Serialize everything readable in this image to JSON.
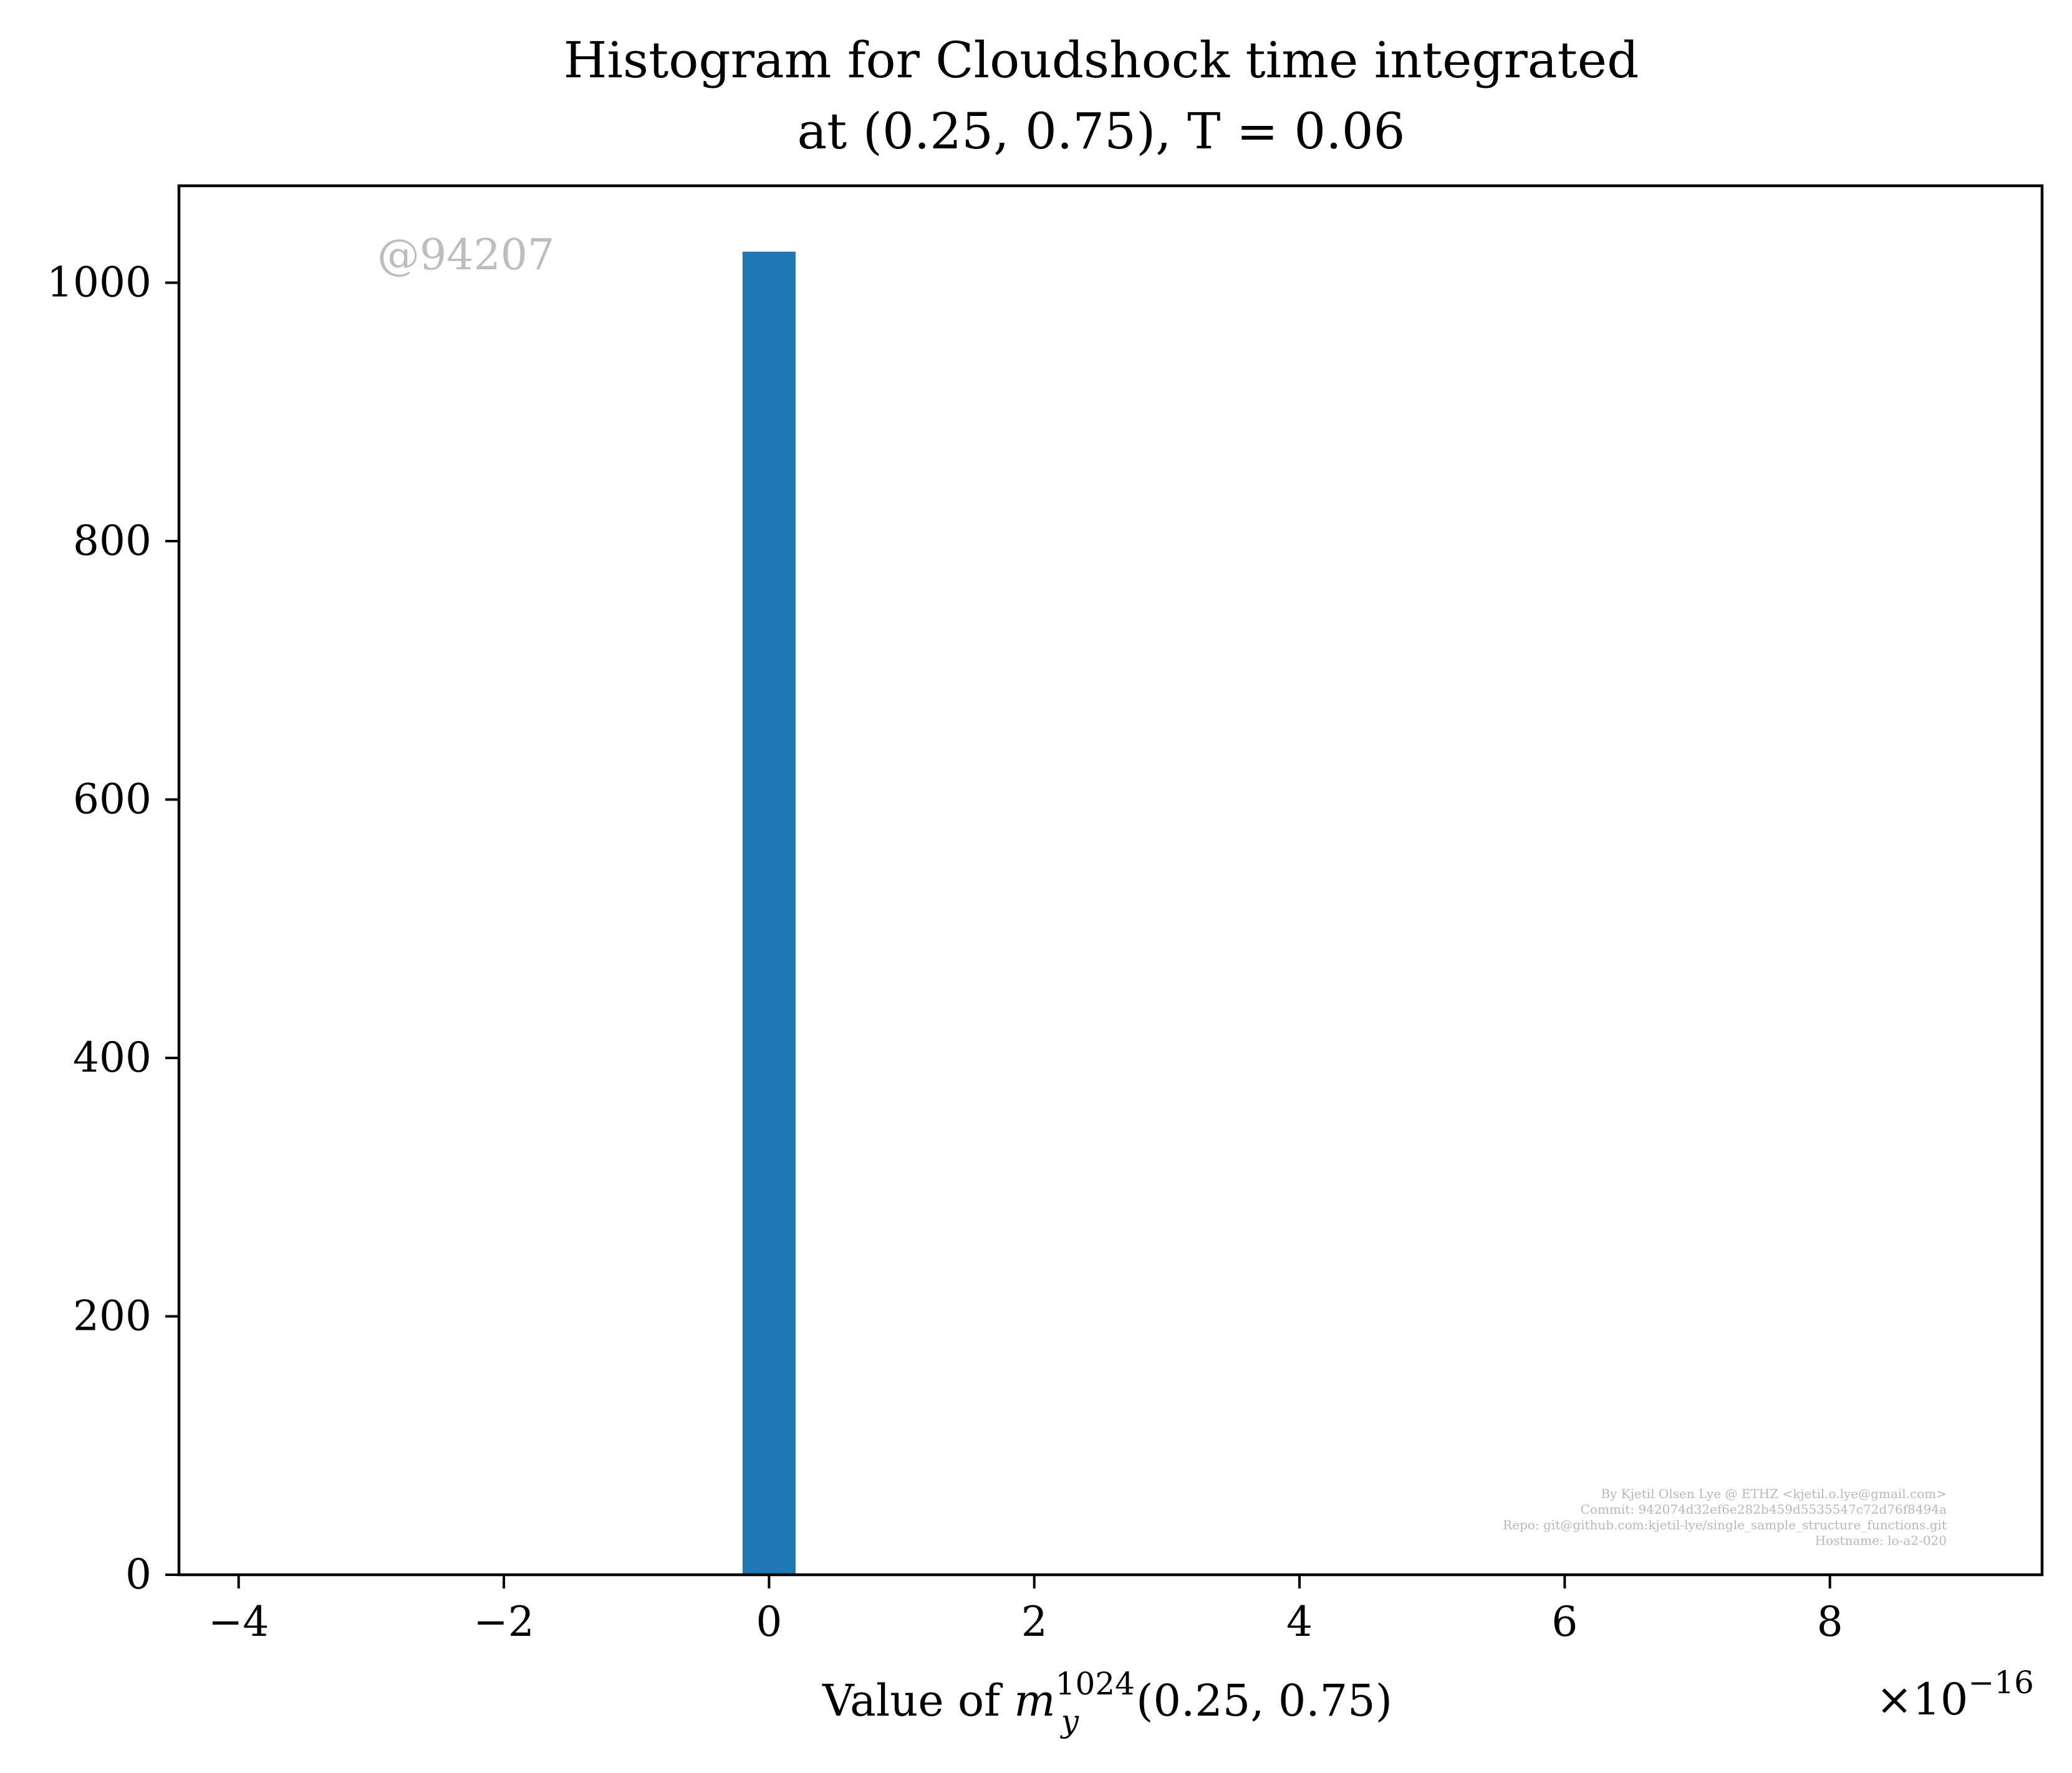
{
  "chart_data": {
    "type": "bar",
    "title_line1": "Histogram for Cloudshock time integrated",
    "title_line2": "at (0.25, 0.75), T = 0.06",
    "xlabel": "Value of m_y^1024(0.25, 0.75)",
    "xlabel_parts": {
      "prefix": "Value of ",
      "var": "m",
      "sub": "y",
      "sup": "1024",
      "suffix": "(0.25, 0.75)"
    },
    "x_offset_label": {
      "base": "×10",
      "exponent": "−16"
    },
    "ylabel": "",
    "xlim": [
      -4.45,
      9.6
    ],
    "ylim": [
      0,
      1075
    ],
    "xticks": [
      {
        "value": -4,
        "label": "−4"
      },
      {
        "value": -2,
        "label": "−2"
      },
      {
        "value": 0,
        "label": "0"
      },
      {
        "value": 2,
        "label": "2"
      },
      {
        "value": 4,
        "label": "4"
      },
      {
        "value": 6,
        "label": "6"
      },
      {
        "value": 8,
        "label": "8"
      }
    ],
    "yticks": [
      {
        "value": 0,
        "label": "0"
      },
      {
        "value": 200,
        "label": "200"
      },
      {
        "value": 400,
        "label": "400"
      },
      {
        "value": 600,
        "label": "600"
      },
      {
        "value": 800,
        "label": "800"
      },
      {
        "value": 1000,
        "label": "1000"
      }
    ],
    "bins": [
      {
        "x0": -0.2,
        "x1": 0.2,
        "count": 1024
      }
    ],
    "bar_color": "#1f77b4",
    "grid": false,
    "legend": "none"
  },
  "annotations": {
    "watermark": "@94207",
    "credit_lines": [
      "By Kjetil Olsen Lye @ ETHZ <kjetil.o.lye@gmail.com>",
      "Commit: 942074d32ef6e282b459d5535547c72d76f8494a",
      "Repo: git@github.com:kjetil-lye/single_sample_structure_functions.git",
      "Hostname: lo-a2-020"
    ]
  }
}
